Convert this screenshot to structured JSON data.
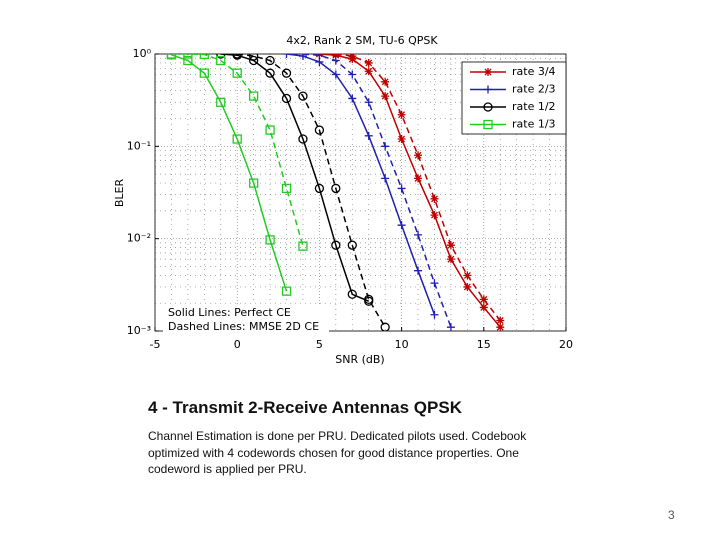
{
  "chart_data": {
    "type": "line",
    "title": "4x2, Rank 2 SM, TU-6 QPSK",
    "xlabel": "SNR (dB)",
    "ylabel": "BLER",
    "ylog": true,
    "grid": true,
    "legend": "upper right",
    "xlim": [
      -5,
      20
    ],
    "xticks": [
      -5,
      0,
      5,
      10,
      15,
      20
    ],
    "ylim": [
      0.001,
      1
    ],
    "yticks": [
      {
        "value": 0.001,
        "label": "10⁻³"
      },
      {
        "value": 0.01,
        "label": "10⁻²"
      },
      {
        "value": 0.1,
        "label": "10⁻¹"
      },
      {
        "value": 1,
        "label": "10⁰"
      }
    ],
    "annotations": [
      "Solid Lines: Perfect CE",
      "Dashed Lines: MMSE 2D CE"
    ],
    "series": [
      {
        "name": "rate 3/4",
        "color": "#c00000",
        "marker": "star",
        "perfect_ce": {
          "x": [
            5,
            6,
            7,
            8,
            9,
            10,
            11,
            12,
            13,
            14,
            15,
            16
          ],
          "values": [
            1,
            0.97,
            0.88,
            0.65,
            0.35,
            0.12,
            0.045,
            0.018,
            0.006,
            0.003,
            0.0018,
            0.0011
          ]
        },
        "mmse_ce": {
          "x": [
            6,
            7,
            8,
            9,
            10,
            11,
            12,
            13,
            14,
            15,
            16
          ],
          "values": [
            1,
            0.95,
            0.8,
            0.5,
            0.22,
            0.08,
            0.027,
            0.0085,
            0.004,
            0.0022,
            0.0013
          ]
        }
      },
      {
        "name": "rate 2/3",
        "color": "#1f1fb4",
        "marker": "plus",
        "perfect_ce": {
          "x": [
            3,
            4,
            5,
            6,
            7,
            8,
            9,
            10,
            11,
            12
          ],
          "values": [
            1,
            0.95,
            0.82,
            0.6,
            0.33,
            0.13,
            0.045,
            0.014,
            0.0045,
            0.0015
          ]
        },
        "mmse_ce": {
          "x": [
            4,
            5,
            6,
            7,
            8,
            9,
            10,
            11,
            12,
            13
          ],
          "values": [
            1,
            0.97,
            0.85,
            0.6,
            0.3,
            0.1,
            0.035,
            0.011,
            0.0033,
            0.0011
          ]
        }
      },
      {
        "name": "rate 1/2",
        "color": "#000000",
        "marker": "circle",
        "perfect_ce": {
          "x": [
            -1,
            0,
            1,
            2,
            3,
            4,
            5,
            6,
            7,
            8
          ],
          "values": [
            1,
            0.97,
            0.85,
            0.62,
            0.33,
            0.12,
            0.035,
            0.0085,
            0.0025,
            0.0021
          ]
        },
        "mmse_ce": {
          "x": [
            0,
            1,
            2,
            3,
            4,
            5,
            6,
            7,
            8,
            9
          ],
          "values": [
            1,
            0.95,
            0.85,
            0.62,
            0.35,
            0.15,
            0.035,
            0.0085,
            0.0022,
            0.0011
          ]
        }
      },
      {
        "name": "rate 1/3",
        "color": "#22cc22",
        "marker": "square",
        "perfect_ce": {
          "x": [
            -4,
            -3,
            -2,
            -1,
            0,
            1,
            2,
            3
          ],
          "values": [
            0.98,
            0.85,
            0.62,
            0.3,
            0.12,
            0.04,
            0.0097,
            0.0027
          ]
        },
        "mmse_ce": {
          "x": [
            -4,
            -3,
            -2,
            -1,
            0,
            1,
            2,
            3,
            4
          ],
          "values": [
            1,
            1,
            0.99,
            0.85,
            0.62,
            0.35,
            0.15,
            0.035,
            0.0083
          ]
        }
      }
    ]
  },
  "slide": {
    "heading": "4 - Transmit 2-Receive Antennas QPSK",
    "body": "Channel Estimation is done per PRU.  Dedicated pilots used.  Codebook optimized with 4 codewords chosen for good distance properties.   One codeword is applied per PRU.",
    "page_number": "3"
  }
}
